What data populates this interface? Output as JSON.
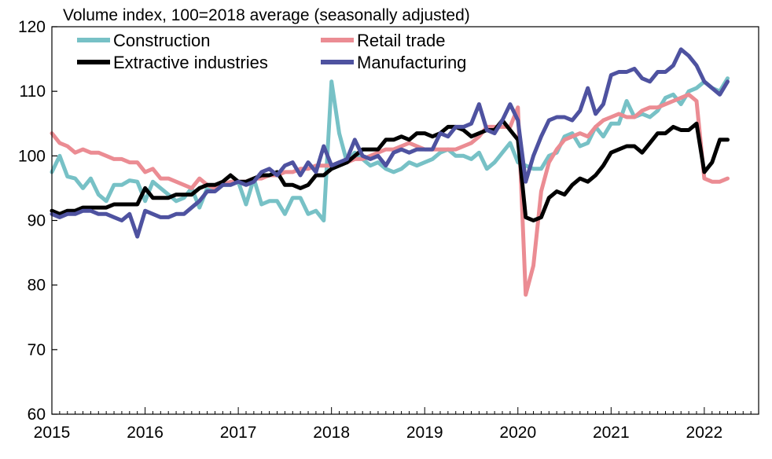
{
  "chart_data": {
    "type": "line",
    "title": "Volume index, 100=2018 average (seasonally adjusted)",
    "xlabel": "",
    "ylabel": "",
    "ylim": [
      60,
      120
    ],
    "yticks": [
      60,
      70,
      80,
      90,
      100,
      110,
      120
    ],
    "xlim": [
      2015.0,
      2022.583
    ],
    "xticks": [
      "2015",
      "2016",
      "2017",
      "2018",
      "2019",
      "2020",
      "2021",
      "2022"
    ],
    "grid": false,
    "legend_placement": "top-left",
    "frequency": "monthly",
    "series": [
      {
        "name": "Construction",
        "color": "#77c1c6",
        "start": "2015-01",
        "values": [
          97.5,
          100.0,
          96.8,
          96.5,
          95.0,
          96.5,
          94.0,
          93.0,
          95.5,
          95.5,
          96.2,
          96.0,
          93.0,
          96.0,
          95.0,
          94.0,
          93.0,
          93.5,
          95.0,
          92.0,
          95.0,
          95.0,
          95.5,
          95.5,
          96.0,
          92.5,
          96.5,
          92.5,
          93.0,
          93.0,
          91.0,
          93.5,
          93.5,
          91.0,
          91.5,
          90.0,
          111.5,
          103.5,
          99.0,
          100.5,
          99.5,
          98.5,
          99.0,
          98.0,
          97.5,
          98.0,
          99.0,
          98.5,
          99.0,
          99.5,
          100.5,
          101.0,
          100.0,
          100.0,
          99.5,
          100.5,
          98.0,
          99.0,
          100.5,
          102.0,
          99.0,
          98.5,
          98.0,
          98.0,
          100.0,
          100.5,
          103.0,
          103.5,
          101.5,
          102.0,
          104.5,
          103.0,
          105.0,
          105.0,
          108.5,
          106.0,
          106.5,
          106.0,
          107.0,
          109.0,
          109.5,
          108.0,
          110.0,
          110.5,
          111.5,
          110.5,
          110.0,
          112.0
        ]
      },
      {
        "name": "Retail trade",
        "color": "#eb8c93",
        "start": "2015-01",
        "values": [
          103.5,
          102.0,
          101.5,
          100.5,
          101.0,
          100.5,
          100.5,
          100.0,
          99.5,
          99.5,
          99.0,
          99.0,
          97.5,
          98.0,
          96.5,
          96.5,
          96.0,
          95.5,
          95.0,
          96.5,
          95.5,
          95.0,
          95.5,
          96.0,
          96.0,
          96.0,
          96.5,
          96.5,
          97.0,
          97.0,
          97.5,
          97.5,
          98.0,
          98.0,
          98.5,
          98.5,
          98.5,
          99.0,
          99.0,
          99.5,
          99.5,
          100.0,
          100.5,
          101.0,
          101.0,
          101.5,
          102.0,
          101.5,
          101.0,
          101.0,
          101.0,
          101.0,
          101.0,
          101.5,
          102.0,
          103.0,
          104.5,
          104.5,
          104.5,
          104.5,
          107.5,
          78.5,
          83.0,
          94.5,
          99.0,
          101.0,
          102.5,
          103.0,
          103.5,
          103.0,
          104.5,
          105.5,
          106.0,
          106.5,
          106.0,
          106.0,
          107.0,
          107.5,
          107.5,
          108.0,
          108.5,
          109.0,
          109.5,
          108.5,
          96.5,
          96.0,
          96.0,
          96.5
        ]
      },
      {
        "name": "Extractive industries",
        "color": "#000000",
        "start": "2015-01",
        "values": [
          91.5,
          91.0,
          91.5,
          91.5,
          92.0,
          92.0,
          92.0,
          92.0,
          92.5,
          92.5,
          92.5,
          92.5,
          95.0,
          93.5,
          93.5,
          93.5,
          94.0,
          94.0,
          94.0,
          95.0,
          95.5,
          95.5,
          96.0,
          97.0,
          96.0,
          96.0,
          96.5,
          97.0,
          97.0,
          97.5,
          95.5,
          95.5,
          95.0,
          95.5,
          97.0,
          97.0,
          98.0,
          98.5,
          99.0,
          100.0,
          101.0,
          101.0,
          101.0,
          102.5,
          102.5,
          103.0,
          102.5,
          103.5,
          103.5,
          103.0,
          103.5,
          104.5,
          104.5,
          104.0,
          103.0,
          103.5,
          104.0,
          104.0,
          105.5,
          104.0,
          102.5,
          90.5,
          90.0,
          90.5,
          93.5,
          94.5,
          94.0,
          95.5,
          96.5,
          96.0,
          97.0,
          98.5,
          100.5,
          101.0,
          101.5,
          101.5,
          100.5,
          102.0,
          103.5,
          103.5,
          104.5,
          104.0,
          104.0,
          105.0,
          97.5,
          99.0,
          102.5,
          102.5
        ]
      },
      {
        "name": "Manufacturing",
        "color": "#4e52a0",
        "start": "2015-01",
        "values": [
          91.0,
          90.5,
          91.0,
          91.0,
          91.5,
          91.5,
          91.0,
          91.0,
          90.5,
          90.0,
          91.0,
          87.5,
          91.5,
          91.0,
          90.5,
          90.5,
          91.0,
          91.0,
          92.0,
          93.0,
          94.5,
          94.5,
          95.5,
          95.5,
          96.0,
          95.5,
          96.0,
          97.5,
          98.0,
          97.0,
          98.5,
          99.0,
          97.0,
          99.0,
          97.5,
          101.5,
          98.5,
          99.0,
          99.5,
          102.5,
          100.0,
          99.5,
          100.0,
          98.5,
          100.5,
          101.0,
          100.5,
          101.0,
          101.0,
          101.0,
          103.5,
          103.0,
          104.5,
          104.5,
          105.0,
          108.0,
          104.0,
          103.5,
          105.5,
          108.0,
          105.5,
          96.0,
          100.0,
          103.0,
          105.5,
          106.0,
          106.0,
          105.5,
          107.0,
          110.5,
          106.5,
          108.0,
          112.5,
          113.0,
          113.0,
          113.5,
          112.0,
          111.5,
          113.0,
          113.0,
          114.0,
          116.5,
          115.5,
          114.0,
          111.5,
          110.5,
          109.5,
          111.5
        ]
      }
    ]
  }
}
